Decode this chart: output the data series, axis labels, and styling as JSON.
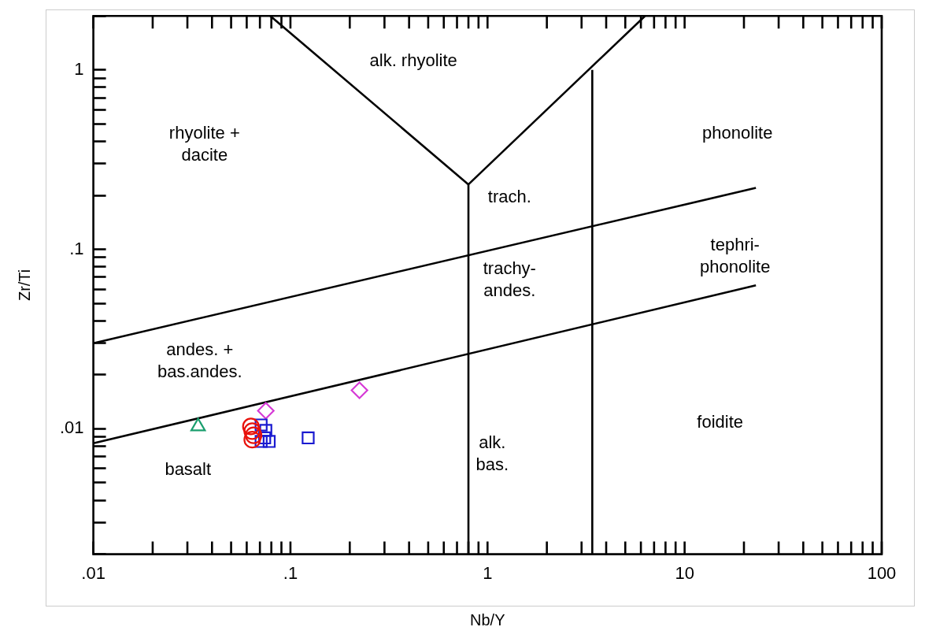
{
  "chart_data": {
    "type": "scatter",
    "xlabel": "Nb/Y",
    "ylabel": "Zr/Ti",
    "log": "xy",
    "grid": false,
    "legend": false,
    "xlim": [
      0.01,
      100
    ],
    "ylim": [
      0.002,
      2
    ],
    "xticks": [
      {
        "value": 0.01,
        "label": ".01"
      },
      {
        "value": 0.02,
        "label": null
      },
      {
        "value": 0.03,
        "label": null
      },
      {
        "value": 0.04,
        "label": null
      },
      {
        "value": 0.05,
        "label": null
      },
      {
        "value": 0.06,
        "label": null
      },
      {
        "value": 0.07,
        "label": null
      },
      {
        "value": 0.08,
        "label": null
      },
      {
        "value": 0.09,
        "label": null
      },
      {
        "value": 0.1,
        "label": ".1"
      },
      {
        "value": 0.2,
        "label": null
      },
      {
        "value": 0.3,
        "label": null
      },
      {
        "value": 0.4,
        "label": null
      },
      {
        "value": 0.5,
        "label": null
      },
      {
        "value": 0.6,
        "label": null
      },
      {
        "value": 0.7,
        "label": null
      },
      {
        "value": 0.8,
        "label": null
      },
      {
        "value": 0.9,
        "label": null
      },
      1,
      {
        "value": 2,
        "label": null
      },
      {
        "value": 3,
        "label": null
      },
      {
        "value": 4,
        "label": null
      },
      {
        "value": 5,
        "label": null
      },
      {
        "value": 6,
        "label": null
      },
      {
        "value": 7,
        "label": null
      },
      {
        "value": 8,
        "label": null
      },
      {
        "value": 9,
        "label": null
      },
      10,
      {
        "value": 20,
        "label": null
      },
      {
        "value": 30,
        "label": null
      },
      {
        "value": 40,
        "label": null
      },
      {
        "value": 50,
        "label": null
      },
      {
        "value": 60,
        "label": null
      },
      {
        "value": 70,
        "label": null
      },
      {
        "value": 80,
        "label": null
      },
      {
        "value": 90,
        "label": null
      },
      100
    ],
    "yticks": [
      {
        "value": 0.002,
        "label": null
      },
      {
        "value": 0.003,
        "label": null
      },
      {
        "value": 0.004,
        "label": null
      },
      {
        "value": 0.005,
        "label": null
      },
      {
        "value": 0.006,
        "label": null
      },
      {
        "value": 0.007,
        "label": null
      },
      {
        "value": 0.008,
        "label": null
      },
      {
        "value": 0.009,
        "label": null
      },
      {
        "value": 0.01,
        "label": ".01"
      },
      {
        "value": 0.02,
        "label": null
      },
      {
        "value": 0.03,
        "label": null
      },
      {
        "value": 0.04,
        "label": null
      },
      {
        "value": 0.05,
        "label": null
      },
      {
        "value": 0.06,
        "label": null
      },
      {
        "value": 0.07,
        "label": null
      },
      {
        "value": 0.08,
        "label": null
      },
      {
        "value": 0.09,
        "label": null
      },
      {
        "value": 0.1,
        "label": ".1"
      },
      {
        "value": 0.2,
        "label": null
      },
      {
        "value": 0.3,
        "label": null
      },
      {
        "value": 0.4,
        "label": null
      },
      {
        "value": 0.5,
        "label": null
      },
      {
        "value": 0.6,
        "label": null
      },
      {
        "value": 0.7,
        "label": null
      },
      {
        "value": 0.8,
        "label": null
      },
      {
        "value": 0.9,
        "label": null
      },
      1,
      {
        "value": 2,
        "label": null
      }
    ],
    "series": [
      {
        "type": "line",
        "color": "#000000",
        "marker": "none",
        "x": [
          0.01,
          23
        ],
        "values": [
          0.03,
          0.22
        ]
      },
      {
        "type": "line",
        "color": "#000000",
        "marker": "none",
        "x": [
          0.01,
          23
        ],
        "values": [
          0.0083,
          0.063
        ]
      },
      {
        "type": "line",
        "color": "#000000",
        "marker": "none",
        "x": [
          0.8,
          0.8
        ],
        "values": [
          0.002,
          0.23
        ]
      },
      {
        "type": "line",
        "color": "#000000",
        "marker": "none",
        "x": [
          3.4,
          3.4
        ],
        "values": [
          0.002,
          1
        ]
      },
      {
        "type": "line",
        "color": "#000000",
        "marker": "none",
        "x": [
          0.079,
          0.8,
          6.3
        ],
        "values": [
          2,
          0.23,
          2
        ]
      },
      {
        "color": "#1a9e6e",
        "marker": "triangle",
        "x": [
          0.034
        ],
        "values": [
          0.0103
        ]
      },
      {
        "color": "#e8120c",
        "marker": "circle",
        "x": [
          0.063,
          0.064,
          0.065,
          0.064
        ],
        "values": [
          0.0103,
          0.0097,
          0.0092,
          0.0087
        ]
      },
      {
        "color": "#1a1ad0",
        "marker": "square",
        "x": [
          0.071,
          0.075,
          0.074,
          0.078,
          0.071,
          0.123
        ],
        "values": [
          0.0105,
          0.0098,
          0.0089,
          0.0085,
          0.0085,
          0.0089
        ]
      },
      {
        "color": "#d63ad6",
        "marker": "diamond",
        "x": [
          0.075,
          0.224
        ],
        "values": [
          0.0126,
          0.0164
        ]
      }
    ],
    "annotations": [
      "alk. rhyolite",
      "rhyolite +\ndacite",
      "trach.",
      "phonolite",
      "tephri-\nphonolite",
      "trachy-\nandes.",
      "andes. +\nbas.andes.",
      "basalt",
      "alk.\nbas.",
      "foidite"
    ]
  }
}
